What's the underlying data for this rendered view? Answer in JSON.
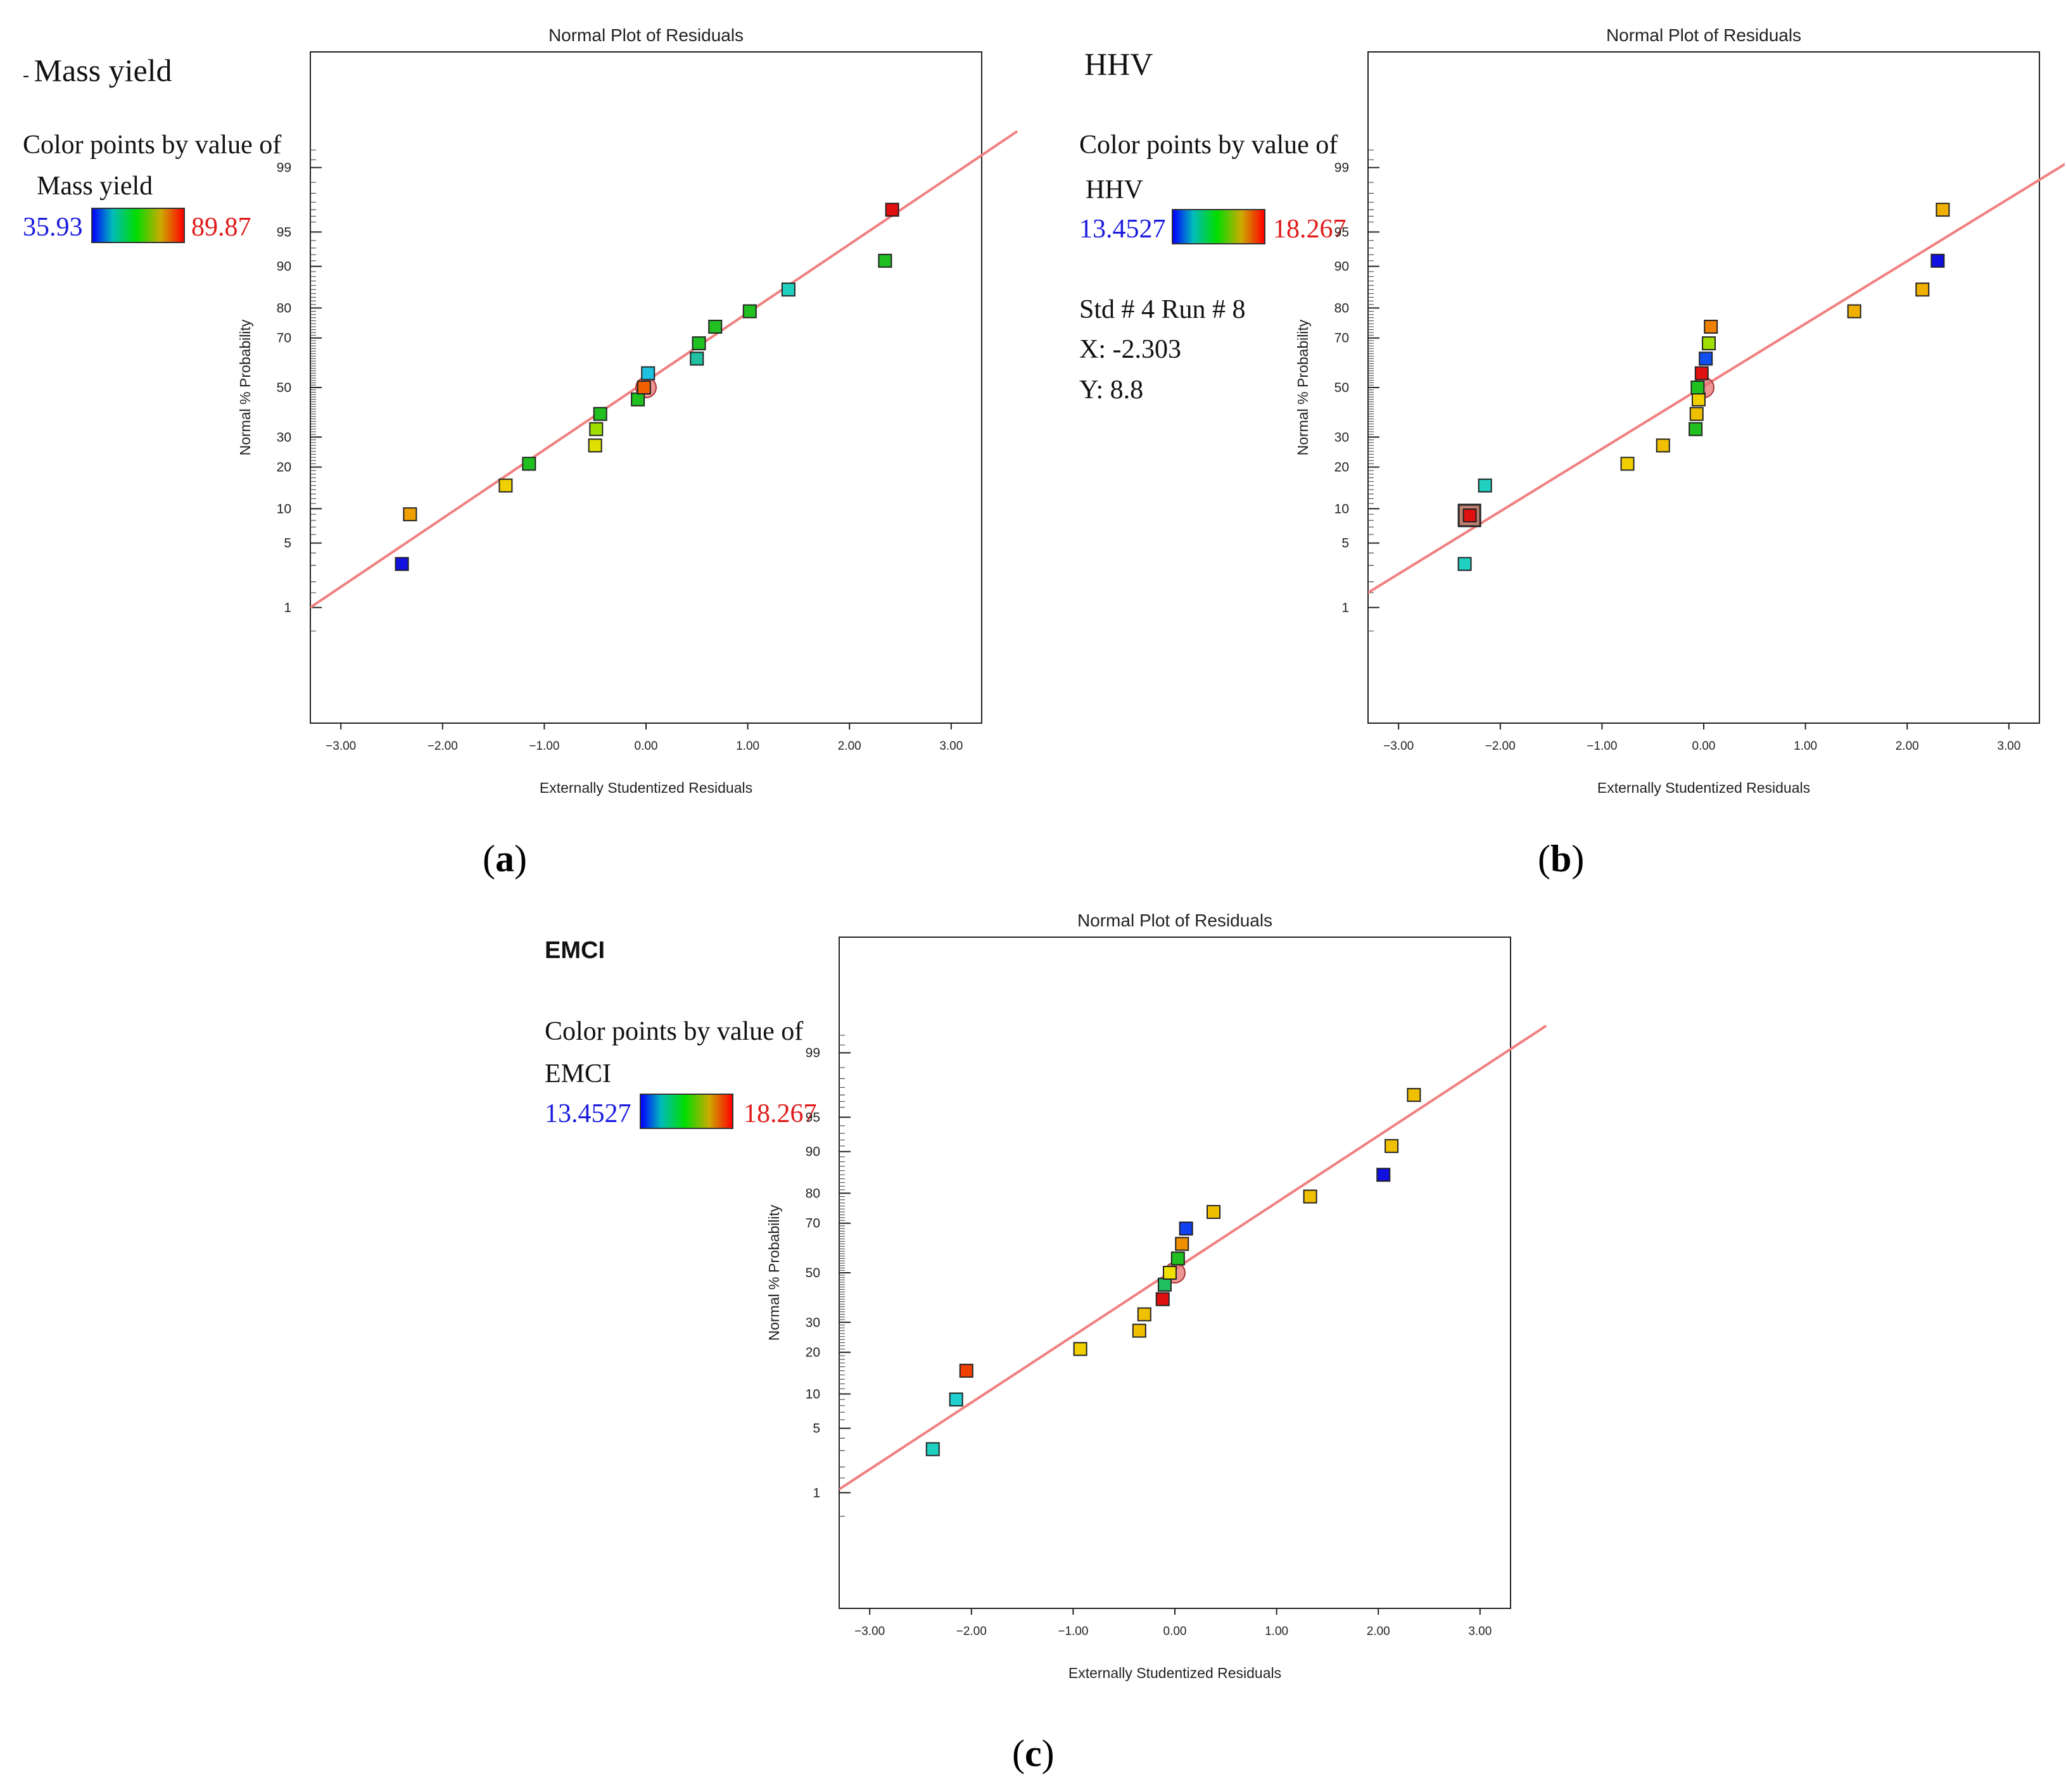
{
  "panels": [
    {
      "caption_letter": "a",
      "heading": "Mass yield",
      "color_label": "Color points by value of",
      "color_var": "Mass yield",
      "range_low": "35.93",
      "range_high": "89.87",
      "readout": null
    },
    {
      "caption_letter": "b",
      "heading": "HHV",
      "color_label": "Color points by value of",
      "color_var": "HHV",
      "range_low": "13.4527",
      "range_high": "18.267",
      "readout": {
        "line1": "Std # 4 Run # 8",
        "line2": "X: -2.303",
        "line3": "Y: 8.8"
      }
    },
    {
      "caption_letter": "c",
      "heading": "EMCI",
      "color_label": "Color points by value of",
      "color_var": "EMCI",
      "range_low": "13.4527",
      "range_high": "18.267",
      "readout": null
    }
  ],
  "colors": {
    "low": "#1010e0",
    "high": "#e01010",
    "fit_line": "#f08080"
  },
  "chart_data": [
    {
      "type": "scatter",
      "title": "Normal Plot of Residuals",
      "xlabel": "Externally Studentized Residuals",
      "ylabel": "Normal % Probability",
      "xlim": [
        -3.3,
        3.3
      ],
      "x_ticks": [
        "-3.00",
        "-2.00",
        "-1.00",
        "0.00",
        "1.00",
        "2.00",
        "3.00"
      ],
      "y_ticks": [
        "1",
        "5",
        "10",
        "20",
        "30",
        "50",
        "70",
        "80",
        "90",
        "95",
        "99"
      ],
      "fit_line": [
        [
          -3.3,
          1.0
        ],
        [
          3.3,
          99.3
        ]
      ],
      "highlight": [
        0.0,
        50.0
      ],
      "points": [
        {
          "x": -2.4,
          "y": 3.1,
          "color": "#1010e0"
        },
        {
          "x": -2.32,
          "y": 9.0,
          "color": "#f0a000"
        },
        {
          "x": -1.38,
          "y": 15.0,
          "color": "#f0d000"
        },
        {
          "x": -1.15,
          "y": 21.0,
          "color": "#20c020"
        },
        {
          "x": -0.5,
          "y": 27.0,
          "color": "#e0e000"
        },
        {
          "x": -0.49,
          "y": 33.0,
          "color": "#a0e000"
        },
        {
          "x": -0.45,
          "y": 39.0,
          "color": "#20c020"
        },
        {
          "x": -0.08,
          "y": 45.0,
          "color": "#20c020"
        },
        {
          "x": -0.02,
          "y": 50.0,
          "color": "#f06000"
        },
        {
          "x": 0.02,
          "y": 56.0,
          "color": "#20c0e0"
        },
        {
          "x": 0.5,
          "y": 62.0,
          "color": "#20c0a0"
        },
        {
          "x": 0.52,
          "y": 68.0,
          "color": "#20c020"
        },
        {
          "x": 0.68,
          "y": 74.0,
          "color": "#20c020"
        },
        {
          "x": 1.02,
          "y": 79.0,
          "color": "#20c020"
        },
        {
          "x": 1.4,
          "y": 85.0,
          "color": "#20d0c0"
        },
        {
          "x": 2.35,
          "y": 91.0,
          "color": "#20c020"
        },
        {
          "x": 2.42,
          "y": 97.0,
          "color": "#e01010"
        }
      ]
    },
    {
      "type": "scatter",
      "title": "Normal Plot of Residuals",
      "xlabel": "Externally Studentized Residuals",
      "ylabel": "Normal % Probability",
      "xlim": [
        -3.3,
        3.3
      ],
      "x_ticks": [
        "-3.00",
        "-2.00",
        "-1.00",
        "0.00",
        "1.00",
        "2.00",
        "3.00"
      ],
      "y_ticks": [
        "1",
        "5",
        "10",
        "20",
        "30",
        "50",
        "70",
        "80",
        "90",
        "95",
        "99"
      ],
      "fit_line": [
        [
          -3.3,
          1.5
        ],
        [
          3.3,
          98.6
        ]
      ],
      "highlight": [
        0.0,
        50.0
      ],
      "selected": [
        -2.303,
        8.8
      ],
      "points": [
        {
          "x": -2.35,
          "y": 3.1,
          "color": "#20d0c0"
        },
        {
          "x": -2.3,
          "y": 8.8,
          "color": "#e01010"
        },
        {
          "x": -2.15,
          "y": 15.0,
          "color": "#20d0c0"
        },
        {
          "x": -0.75,
          "y": 21.0,
          "color": "#f0d000"
        },
        {
          "x": -0.4,
          "y": 27.0,
          "color": "#f0c000"
        },
        {
          "x": -0.08,
          "y": 33.0,
          "color": "#20c020"
        },
        {
          "x": -0.07,
          "y": 39.0,
          "color": "#f0c000"
        },
        {
          "x": -0.05,
          "y": 45.0,
          "color": "#f0d000"
        },
        {
          "x": -0.06,
          "y": 50.0,
          "color": "#20c020"
        },
        {
          "x": -0.02,
          "y": 56.0,
          "color": "#e01010"
        },
        {
          "x": 0.02,
          "y": 62.0,
          "color": "#1050f0"
        },
        {
          "x": 0.05,
          "y": 68.0,
          "color": "#a0e000"
        },
        {
          "x": 0.07,
          "y": 74.0,
          "color": "#f08000"
        },
        {
          "x": 1.48,
          "y": 79.0,
          "color": "#f0b000"
        },
        {
          "x": 2.15,
          "y": 85.0,
          "color": "#f0b000"
        },
        {
          "x": 2.3,
          "y": 91.0,
          "color": "#1010e0"
        },
        {
          "x": 2.35,
          "y": 97.0,
          "color": "#f0b000"
        }
      ]
    },
    {
      "type": "scatter",
      "title": "Normal Plot of Residuals",
      "xlabel": "Externally Studentized Residuals",
      "ylabel": "Normal % Probability",
      "xlim": [
        -3.3,
        3.3
      ],
      "x_ticks": [
        "-3.00",
        "-2.00",
        "-1.00",
        "0.00",
        "1.00",
        "2.00",
        "3.00"
      ],
      "y_ticks": [
        "1",
        "5",
        "10",
        "20",
        "30",
        "50",
        "70",
        "80",
        "90",
        "95",
        "99"
      ],
      "fit_line": [
        [
          -3.3,
          1.1
        ],
        [
          3.3,
          99.1
        ]
      ],
      "highlight": [
        0.0,
        50.0
      ],
      "points": [
        {
          "x": -2.38,
          "y": 3.1,
          "color": "#20d0c0"
        },
        {
          "x": -2.15,
          "y": 9.0,
          "color": "#20d0d0"
        },
        {
          "x": -2.05,
          "y": 15.0,
          "color": "#f04000"
        },
        {
          "x": -0.93,
          "y": 21.0,
          "color": "#f0d000"
        },
        {
          "x": -0.35,
          "y": 27.0,
          "color": "#f0c000"
        },
        {
          "x": -0.3,
          "y": 33.0,
          "color": "#f0c000"
        },
        {
          "x": -0.12,
          "y": 39.0,
          "color": "#e01010"
        },
        {
          "x": -0.1,
          "y": 45.0,
          "color": "#20c060"
        },
        {
          "x": -0.05,
          "y": 50.0,
          "color": "#f0e000"
        },
        {
          "x": 0.03,
          "y": 56.0,
          "color": "#20c020"
        },
        {
          "x": 0.07,
          "y": 62.0,
          "color": "#f09000"
        },
        {
          "x": 0.11,
          "y": 68.0,
          "color": "#1040f0"
        },
        {
          "x": 0.38,
          "y": 74.0,
          "color": "#f0c000"
        },
        {
          "x": 1.33,
          "y": 79.0,
          "color": "#f0c000"
        },
        {
          "x": 2.05,
          "y": 85.0,
          "color": "#1010e0"
        },
        {
          "x": 2.13,
          "y": 91.0,
          "color": "#f0c000"
        },
        {
          "x": 2.35,
          "y": 97.0,
          "color": "#f0c000"
        }
      ]
    }
  ]
}
